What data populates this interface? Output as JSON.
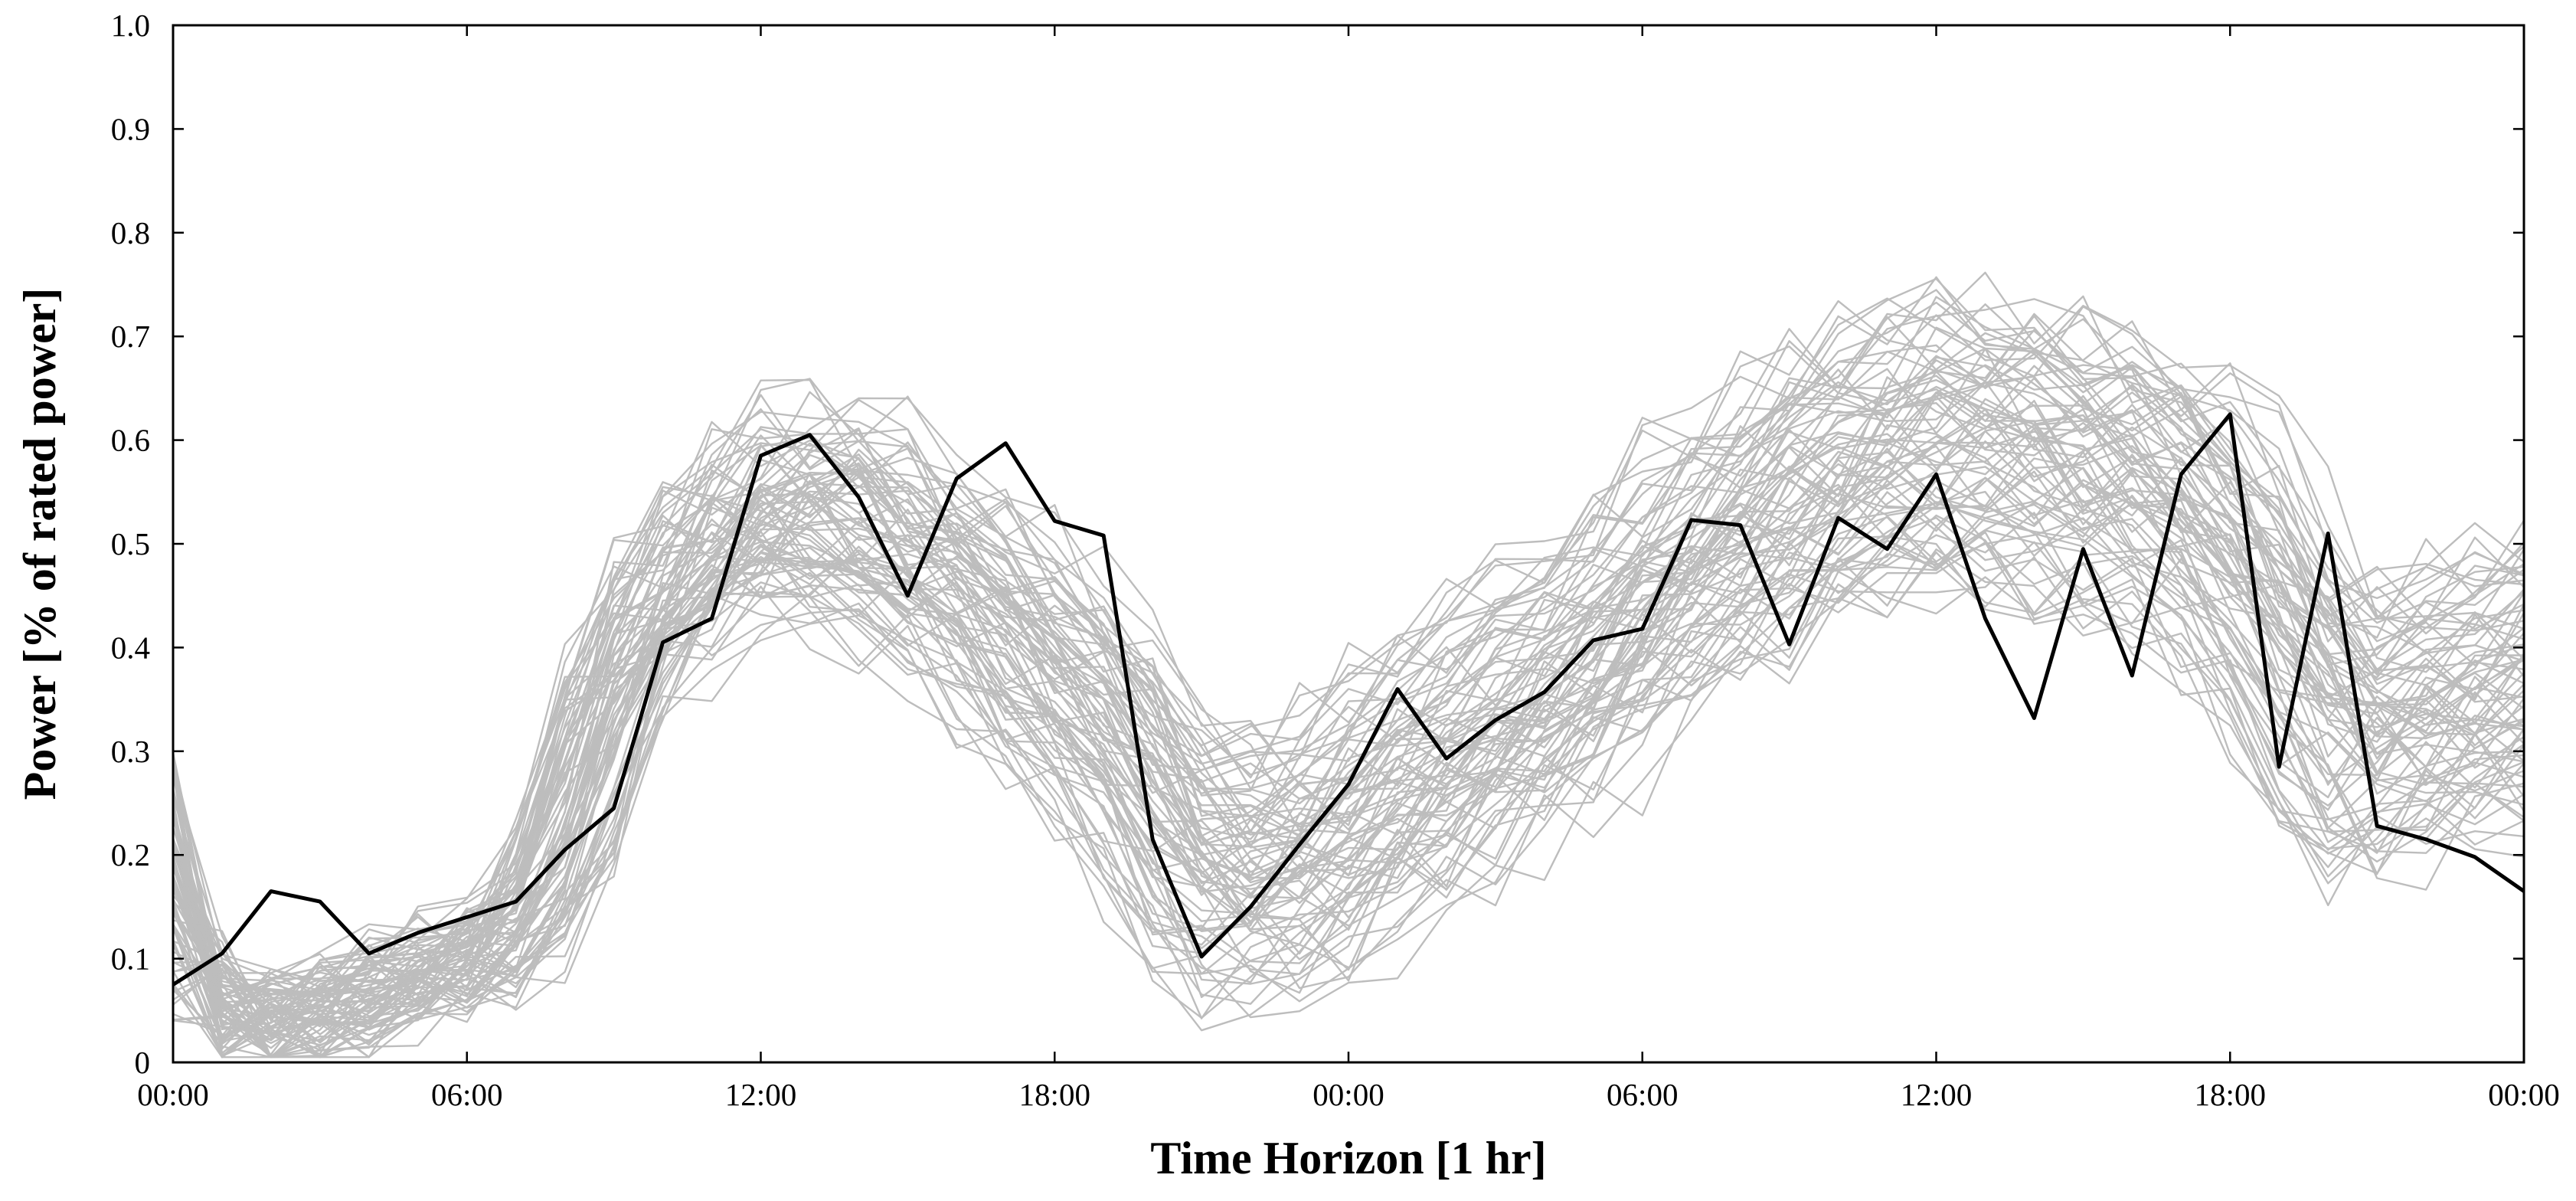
{
  "chart_data": {
    "type": "line",
    "title": "",
    "xlabel": "Time Horizon [1 hr]",
    "ylabel": "Power [% of rated power]",
    "xlim": [
      0,
      48
    ],
    "ylim": [
      0,
      1.0
    ],
    "xticks": [
      {
        "x": 0,
        "label": "00:00"
      },
      {
        "x": 6,
        "label": "06:00"
      },
      {
        "x": 12,
        "label": "12:00"
      },
      {
        "x": 18,
        "label": "18:00"
      },
      {
        "x": 24,
        "label": "00:00"
      },
      {
        "x": 30,
        "label": "06:00"
      },
      {
        "x": 36,
        "label": "12:00"
      },
      {
        "x": 42,
        "label": "18:00"
      },
      {
        "x": 48,
        "label": "00:00"
      }
    ],
    "yticks": [
      {
        "y": 0,
        "label": "0"
      },
      {
        "y": 0.1,
        "label": "0.1"
      },
      {
        "y": 0.2,
        "label": "0.2"
      },
      {
        "y": 0.3,
        "label": "0.3"
      },
      {
        "y": 0.4,
        "label": "0.4"
      },
      {
        "y": 0.5,
        "label": "0.5"
      },
      {
        "y": 0.6,
        "label": "0.6"
      },
      {
        "y": 0.7,
        "label": "0.7"
      },
      {
        "y": 0.8,
        "label": "0.8"
      },
      {
        "y": 0.9,
        "label": "0.9"
      },
      {
        "y": 1.0,
        "label": "1.0"
      }
    ],
    "grid": false,
    "colors": {
      "highlight": "#000000",
      "scenarios": "#bdbdbd"
    },
    "scenario_mean": [
      0.1,
      0.04,
      0.035,
      0.05,
      0.07,
      0.085,
      0.1,
      0.12,
      0.22,
      0.38,
      0.45,
      0.5,
      0.53,
      0.54,
      0.52,
      0.49,
      0.46,
      0.42,
      0.38,
      0.33,
      0.25,
      0.19,
      0.18,
      0.2,
      0.23,
      0.27,
      0.3,
      0.33,
      0.36,
      0.4,
      0.44,
      0.48,
      0.51,
      0.54,
      0.57,
      0.59,
      0.6,
      0.6,
      0.59,
      0.58,
      0.56,
      0.54,
      0.5,
      0.42,
      0.33,
      0.32,
      0.34,
      0.36,
      0.38
    ],
    "scenario_count": 80,
    "highlight": {
      "x": [
        0,
        1,
        2,
        3,
        4,
        5,
        6,
        7,
        8,
        9,
        10,
        11,
        12,
        13,
        14,
        15,
        16,
        17,
        18,
        19,
        20,
        21,
        22,
        23,
        24,
        25,
        26,
        27,
        28,
        29,
        30,
        31,
        32,
        33,
        34,
        35,
        36,
        37,
        38,
        39,
        40,
        41,
        42,
        43,
        44,
        45,
        46,
        47,
        48
      ],
      "y": [
        0.075,
        0.105,
        0.165,
        0.155,
        0.105,
        0.125,
        0.14,
        0.155,
        0.205,
        0.245,
        0.405,
        0.428,
        0.585,
        0.605,
        0.545,
        0.45,
        0.563,
        0.597,
        0.522,
        0.508,
        0.215,
        0.102,
        0.15,
        0.21,
        0.268,
        0.36,
        0.293,
        0.33,
        0.357,
        0.407,
        0.418,
        0.523,
        0.518,
        0.403,
        0.525,
        0.495,
        0.567,
        0.428,
        0.332,
        0.495,
        0.373,
        0.567,
        0.625,
        0.285,
        0.51,
        0.228,
        0.215,
        0.198,
        0.165
      ]
    }
  }
}
